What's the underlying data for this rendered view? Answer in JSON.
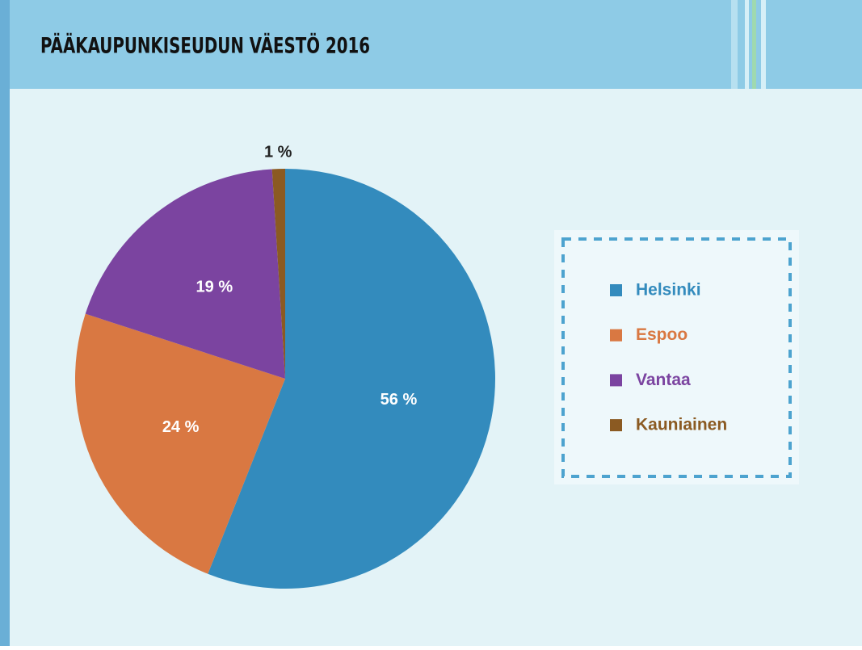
{
  "chart_data": {
    "type": "pie",
    "title": "PÄÄKAUPUNKISEUDUN VÄESTÖ 2016",
    "categories": [
      "Helsinki",
      "Espoo",
      "Vantaa",
      "Kauniainen"
    ],
    "values": [
      56,
      24,
      19,
      1
    ],
    "value_labels": [
      "56 %",
      "24 %",
      "19 %",
      "1 %"
    ],
    "colors": [
      "#338bbd",
      "#d97842",
      "#7b44a0",
      "#8b5a22"
    ],
    "legend": "right"
  }
}
